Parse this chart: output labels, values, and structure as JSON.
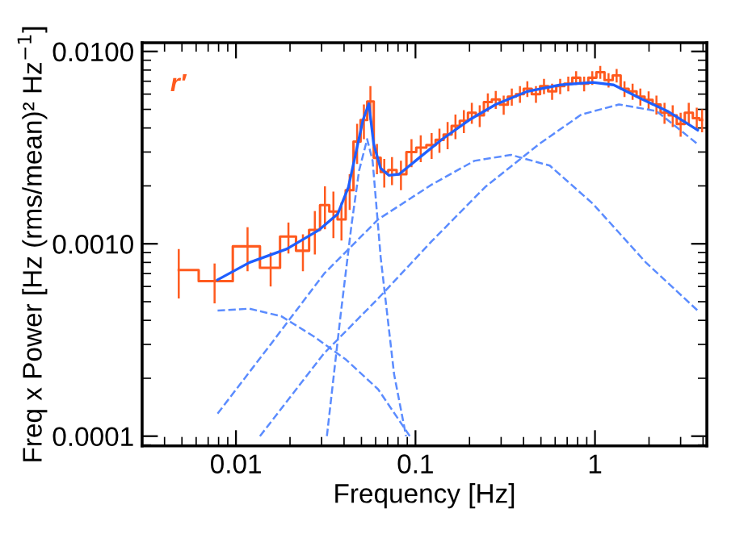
{
  "chart_data": {
    "type": "step",
    "xlabel": "Frequency [Hz]",
    "ylabel": "Freq x Power [Hz (rms/mean)² Hz$^{−1}$]",
    "annotations": [
      "r′"
    ],
    "log": "xy",
    "xlim": [
      0.003,
      4.2
    ],
    "ylim": [
      8.9e-05,
      0.0111
    ],
    "xticks": [
      0.01,
      0.1,
      1
    ],
    "yticks": [
      {
        "value": 0.0001,
        "label": "0.0001"
      },
      {
        "value": 0.001,
        "label": "0.0010"
      },
      {
        "value": 0.01,
        "label": "0.0100"
      }
    ],
    "grid": false,
    "legend": false,
    "series": [
      {
        "color": "#ff5a1e",
        "line_style": "solid",
        "x": [
          0.0048,
          0.0076,
          0.0116,
          0.0156,
          0.0196,
          0.0236,
          0.0275,
          0.0313,
          0.0349,
          0.0387,
          0.043,
          0.0473,
          0.0516,
          0.0561,
          0.061,
          0.067,
          0.074,
          0.083,
          0.095,
          0.107,
          0.123,
          0.136,
          0.151,
          0.167,
          0.186,
          0.206,
          0.228,
          0.253,
          0.28,
          0.31,
          0.344,
          0.382,
          0.42,
          0.469,
          0.52,
          0.577,
          0.64,
          0.71,
          0.785,
          0.87,
          0.966,
          1.07,
          1.19,
          1.32,
          1.46,
          1.62,
          1.79,
          1.99,
          2.2,
          2.44,
          2.71,
          3.0,
          3.33,
          3.69,
          3.95
        ],
        "values": [
          0.00073,
          0.00064,
          0.00097,
          0.00075,
          0.00109,
          0.00092,
          0.00118,
          0.00159,
          0.00147,
          0.00134,
          0.0019,
          0.0034,
          0.0044,
          0.0055,
          0.0028,
          0.00236,
          0.00242,
          0.0023,
          0.003,
          0.00316,
          0.00326,
          0.00347,
          0.0037,
          0.0041,
          0.00436,
          0.0048,
          0.00465,
          0.00546,
          0.00563,
          0.00529,
          0.00582,
          0.006,
          0.0064,
          0.006,
          0.0066,
          0.0062,
          0.0066,
          0.0068,
          0.0073,
          0.0068,
          0.0073,
          0.0078,
          0.0071,
          0.0075,
          0.0064,
          0.0062,
          0.00582,
          0.0056,
          0.0053,
          0.0048,
          0.00465,
          0.0042,
          0.0048,
          0.0045,
          0.0044
        ],
        "errors": [
          0.00021,
          0.00015,
          0.00025,
          0.00015,
          0.0002,
          0.0002,
          0.0003,
          0.0004,
          0.0004,
          0.0003,
          0.0004,
          0.0008,
          0.0009,
          0.0011,
          0.0005,
          0.0004,
          0.0004,
          0.0004,
          0.0005,
          0.0005,
          0.0005,
          0.0005,
          0.0006,
          0.0006,
          0.0006,
          0.0006,
          0.0006,
          0.0006,
          0.0006,
          0.0006,
          0.0006,
          0.0006,
          0.0006,
          0.0006,
          0.0006,
          0.0006,
          0.0006,
          0.0006,
          0.0006,
          0.0006,
          0.0006,
          0.0006,
          0.0006,
          0.0006,
          0.0006,
          0.0006,
          0.0006,
          0.0006,
          0.0006,
          0.0006,
          0.0006,
          0.0006,
          0.0006,
          0.0006,
          0.0006
        ]
      },
      {
        "type": "line",
        "color": "#1f5fff",
        "line_style": "solid",
        "x": [
          0.0079,
          0.0119,
          0.0192,
          0.029,
          0.0369,
          0.0423,
          0.047,
          0.051,
          0.055,
          0.0585,
          0.0639,
          0.071,
          0.081,
          0.1,
          0.141,
          0.199,
          0.28,
          0.42,
          0.64,
          0.97,
          1.27,
          1.79,
          2.53,
          3.73
        ],
        "values": [
          0.00065,
          0.0008,
          0.00094,
          0.00118,
          0.00143,
          0.00197,
          0.0031,
          0.0044,
          0.00535,
          0.0033,
          0.00247,
          0.00227,
          0.0023,
          0.0027,
          0.0035,
          0.0044,
          0.0053,
          0.0062,
          0.0067,
          0.0069,
          0.0067,
          0.0057,
          0.0049,
          0.0039
        ]
      },
      {
        "type": "line",
        "color": "#5b8cff",
        "line_style": "dashed",
        "x": [
          0.0079,
          0.0119,
          0.0179,
          0.0271,
          0.041,
          0.062,
          0.093
        ],
        "values": [
          0.00045,
          0.00046,
          0.00042,
          0.00033,
          0.00025,
          0.000175,
          0.0001
        ]
      },
      {
        "type": "line",
        "color": "#5b8cff",
        "line_style": "dashed",
        "x": [
          0.0321,
          0.0382,
          0.044,
          0.0485,
          0.0538,
          0.0577,
          0.064,
          0.076,
          0.0886
        ],
        "values": [
          0.0001,
          0.00042,
          0.00125,
          0.0024,
          0.0035,
          0.0027,
          0.00085,
          0.00021,
          0.0001
        ]
      },
      {
        "type": "line",
        "color": "#5b8cff",
        "line_style": "dashed",
        "x": [
          0.0079,
          0.0156,
          0.031,
          0.062,
          0.123,
          0.213,
          0.34,
          0.56,
          0.97,
          1.92,
          3.73
        ],
        "values": [
          0.000131,
          0.0003,
          0.0007,
          0.00134,
          0.00203,
          0.0027,
          0.0029,
          0.00255,
          0.00162,
          0.0008,
          0.00045
        ]
      },
      {
        "type": "line",
        "color": "#5b8cff",
        "line_style": "dashed",
        "x": [
          0.0136,
          0.031,
          0.062,
          0.123,
          0.244,
          0.488,
          0.84,
          1.36,
          2.2,
          3.73
        ],
        "values": [
          0.0001,
          0.00027,
          0.00052,
          0.00103,
          0.00197,
          0.0033,
          0.0047,
          0.0053,
          0.0049,
          0.0033
        ]
      }
    ]
  }
}
